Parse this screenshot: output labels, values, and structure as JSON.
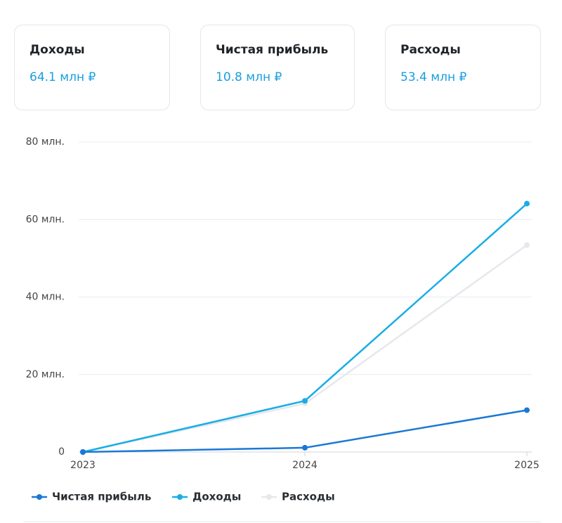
{
  "cards": [
    {
      "title": "Доходы",
      "value": "64.1 млн ₽"
    },
    {
      "title": "Чистая прибыль",
      "value": "10.8 млн ₽"
    },
    {
      "title": "Расходы",
      "value": "53.4 млн ₽"
    }
  ],
  "chart_data": {
    "type": "line",
    "categories": [
      "2023",
      "2024",
      "2025"
    ],
    "series": [
      {
        "name": "Чистая прибыль",
        "color": "#1a78d6",
        "values": [
          0,
          1.1,
          10.8
        ]
      },
      {
        "name": "Доходы",
        "color": "#19ade6",
        "values": [
          0,
          13.2,
          64.1
        ]
      },
      {
        "name": "Расходы",
        "color": "#e6e8ec",
        "values": [
          0,
          12.5,
          53.4
        ]
      }
    ],
    "ylim": [
      0,
      80
    ],
    "yticks": [
      0,
      {
        "value": 20,
        "label": "20 млн."
      },
      {
        "value": 40,
        "label": "40 млн."
      },
      {
        "value": 60,
        "label": "60 млн."
      },
      {
        "value": 80,
        "label": "80 млн."
      }
    ],
    "grid": true
  }
}
